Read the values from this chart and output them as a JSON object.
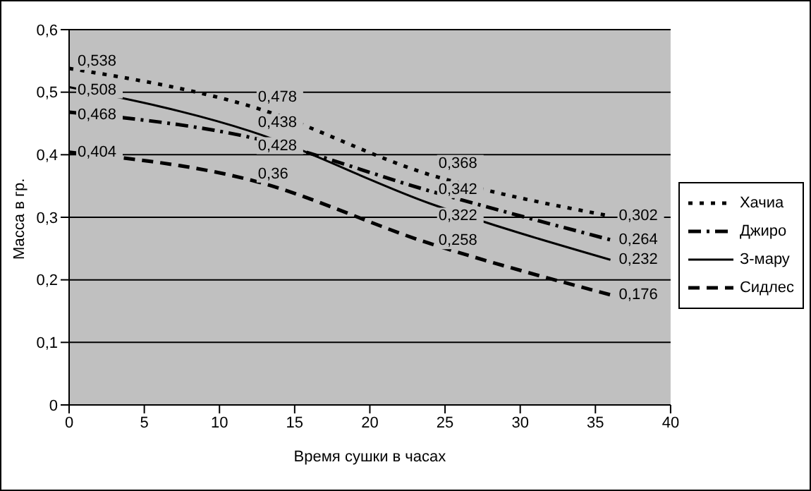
{
  "chart_data": {
    "type": "line",
    "xlabel": "Время сушки в часах",
    "ylabel": "Масса в гр.",
    "x": [
      0,
      12,
      24,
      36
    ],
    "series": [
      {
        "name": "Хачиа",
        "color": "#000000",
        "line_style": "dotted",
        "values": [
          0.538,
          0.478,
          0.368,
          0.302
        ],
        "value_labels": [
          "0,538",
          "0,478",
          "0,368",
          "0,302"
        ]
      },
      {
        "name": "Джиро",
        "color": "#000000",
        "line_style": "dashdot",
        "values": [
          0.468,
          0.428,
          0.342,
          0.264
        ],
        "value_labels": [
          "0,468",
          "0,428",
          "0,342",
          "0,264"
        ]
      },
      {
        "name": "З-мару",
        "color": "#000000",
        "line_style": "solid",
        "values": [
          0.508,
          0.438,
          0.322,
          0.232
        ],
        "value_labels": [
          "0,508",
          "0,438",
          "0,322",
          "0,232"
        ]
      },
      {
        "name": "Сидлес",
        "color": "#000000",
        "line_style": "dashed",
        "values": [
          0.404,
          0.36,
          0.258,
          0.176
        ],
        "value_labels": [
          "0,404",
          "0,36",
          "0,258",
          "0,176"
        ]
      }
    ],
    "xlim": [
      0,
      40
    ],
    "xticks": [
      0,
      5,
      10,
      15,
      20,
      25,
      30,
      35,
      40
    ],
    "ylim": [
      0,
      0.6
    ],
    "yticks": [
      0,
      {
        "value": 0.1,
        "label": "0,1"
      },
      {
        "value": 0.2,
        "label": "0,2"
      },
      {
        "value": 0.3,
        "label": "0,3"
      },
      {
        "value": 0.4,
        "label": "0,4"
      },
      {
        "value": 0.5,
        "label": "0,5"
      },
      {
        "value": 0.6,
        "label": "0,6"
      }
    ],
    "grid": "y",
    "legend": "right",
    "marker": "none"
  }
}
